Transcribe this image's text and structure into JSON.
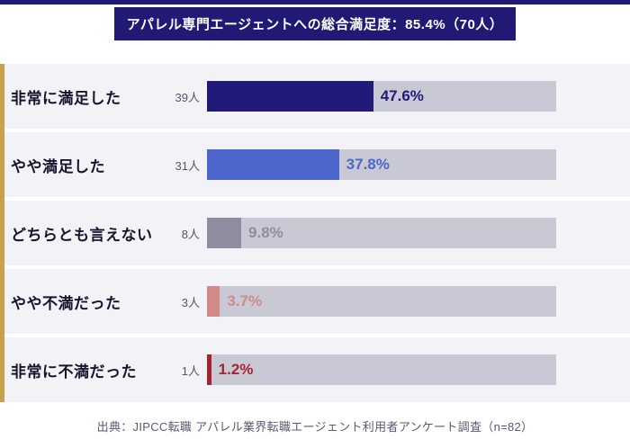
{
  "header": {
    "title": "アパレル専門エージェントへの総合満足度：85.4%（70人）"
  },
  "footer": {
    "source": "出典：JIPCC転職 アパレル業界転職エージェント利用者アンケート調査（n=82）"
  },
  "colors": {
    "navy": "#211a74",
    "accent_stripe_gold": "#c8a14d",
    "row_background": "#f2f2f7",
    "bar_track": "#c9c9d5"
  },
  "chart_data": {
    "type": "bar",
    "orientation": "horizontal",
    "title": "アパレル専門エージェントへの総合満足度：85.4%（70人）",
    "categories": [
      "非常に満足した",
      "やや満足した",
      "どちらとも言えない",
      "やや不満だった",
      "非常に不満だった"
    ],
    "counts": [
      "39人",
      "31人",
      "8人",
      "3人",
      "1人"
    ],
    "values": [
      47.6,
      37.8,
      9.8,
      3.7,
      1.2
    ],
    "value_labels": [
      "47.6%",
      "37.8%",
      "9.8%",
      "3.7%",
      "1.2%"
    ],
    "bar_colors": [
      "#221a78",
      "#4c66cc",
      "#8d8d9f",
      "#d18a87",
      "#a32433"
    ],
    "xlim": [
      0,
      100
    ],
    "legend": false,
    "grid": false,
    "xlabel": "",
    "ylabel": ""
  }
}
